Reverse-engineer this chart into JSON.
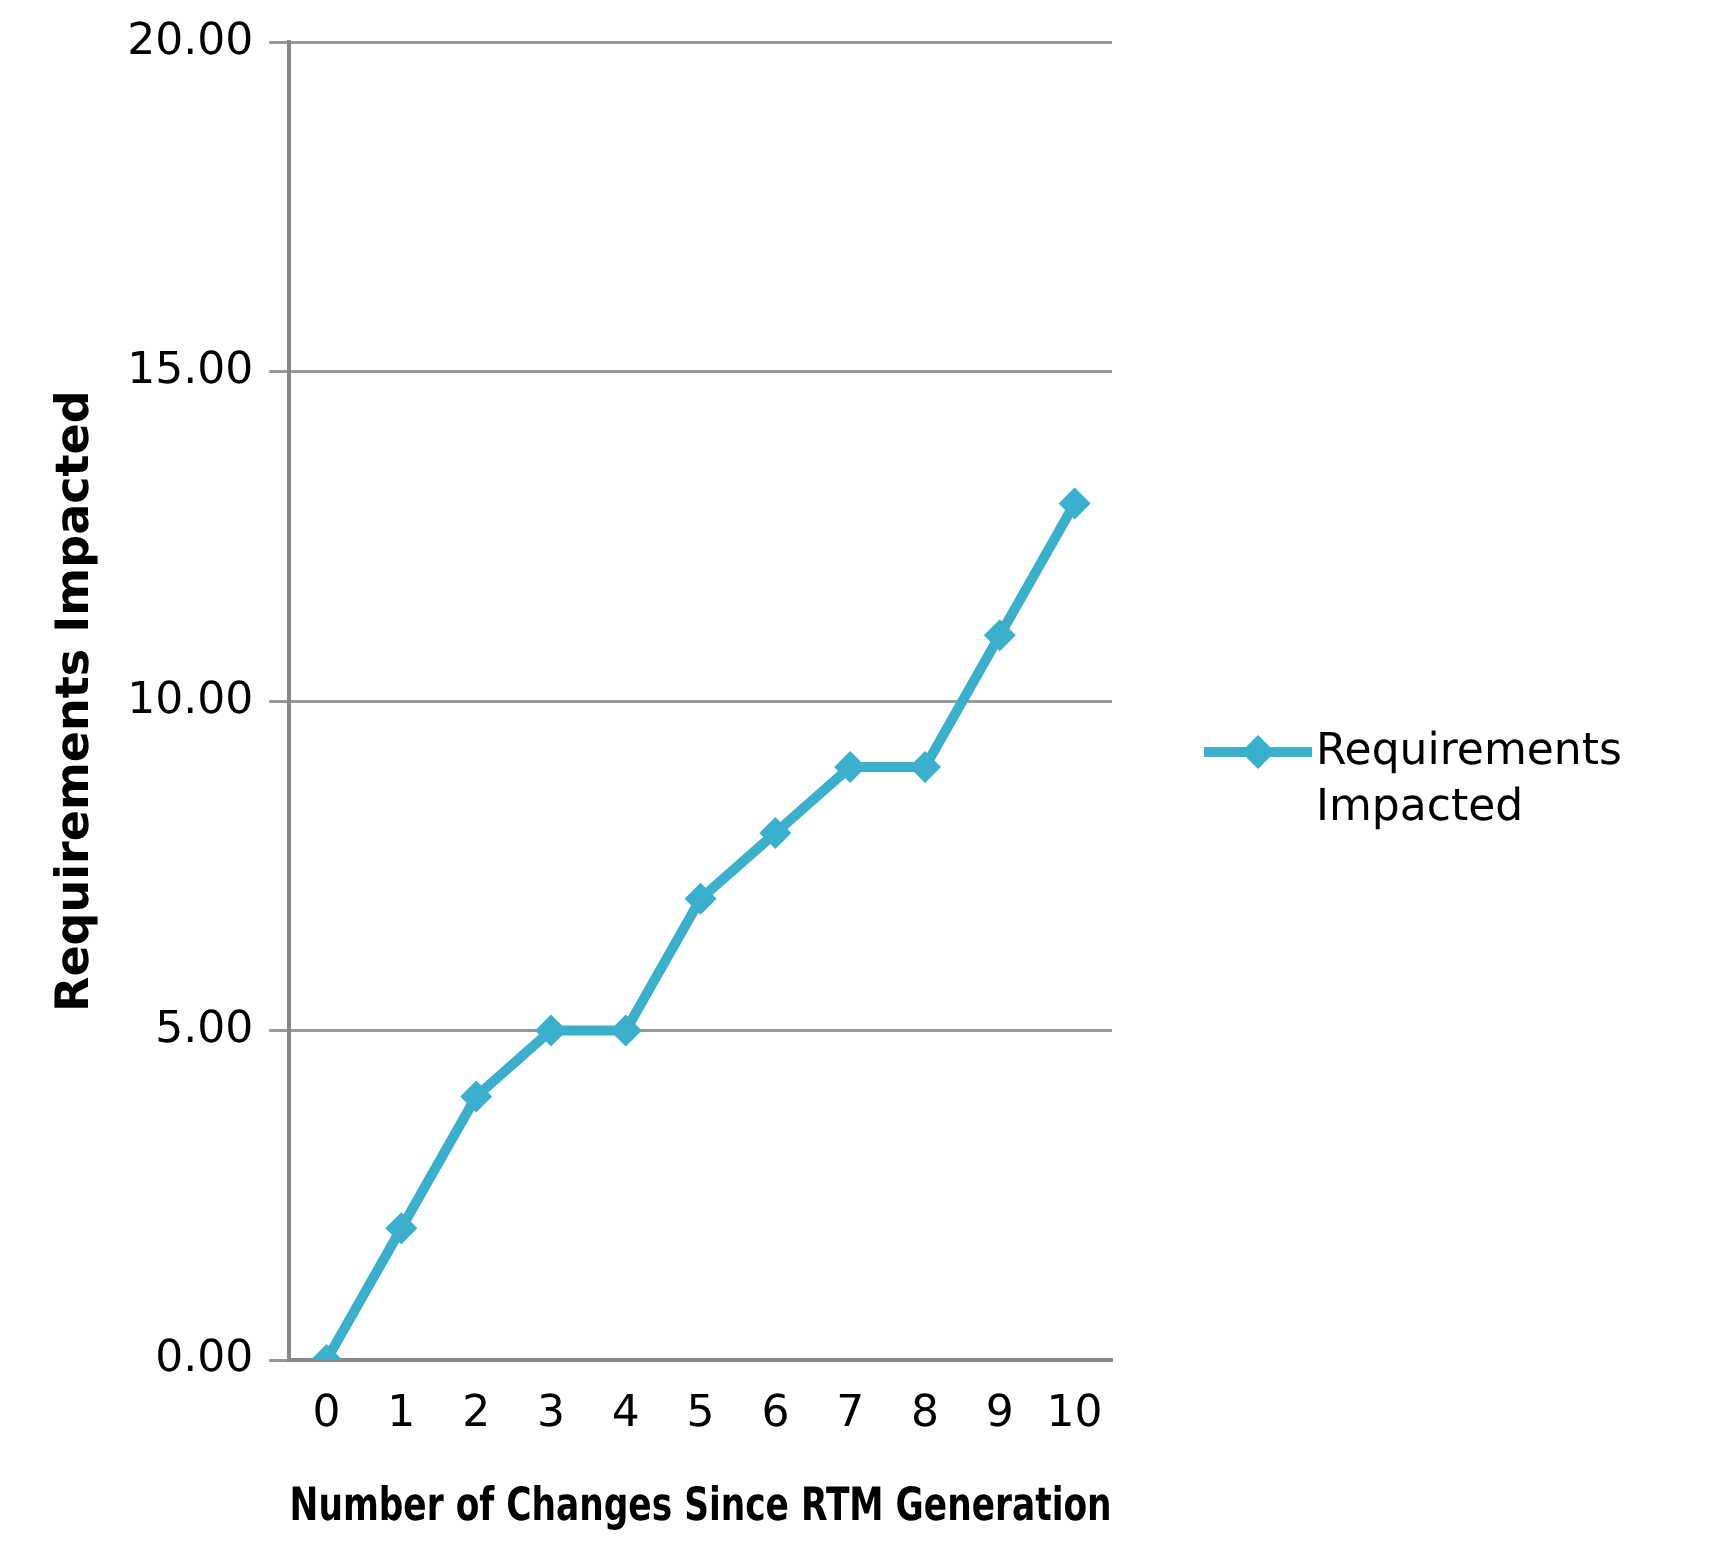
{
  "chart_data": {
    "type": "line",
    "xlabel": "Number of Changes Since RTM Generation",
    "ylabel": "Requirements Impacted",
    "categories": [
      "0",
      "1",
      "2",
      "3",
      "4",
      "5",
      "6",
      "7",
      "8",
      "9",
      "10"
    ],
    "series": [
      {
        "name": "Requirements Impacted",
        "color": "#3ab0cc",
        "values": [
          0,
          2,
          4,
          5,
          5,
          7,
          8,
          9,
          9,
          11,
          13
        ]
      }
    ],
    "ylim": [
      0,
      20
    ],
    "yticks": [
      {
        "value": 0,
        "label": "0.00"
      },
      {
        "value": 5,
        "label": "5.00"
      },
      {
        "value": 10,
        "label": "10.00"
      },
      {
        "value": 15,
        "label": "15.00"
      },
      {
        "value": 20,
        "label": "20.00"
      }
    ],
    "grid": "y",
    "legend": "right",
    "marker": "diamond",
    "line_style": "solid"
  }
}
